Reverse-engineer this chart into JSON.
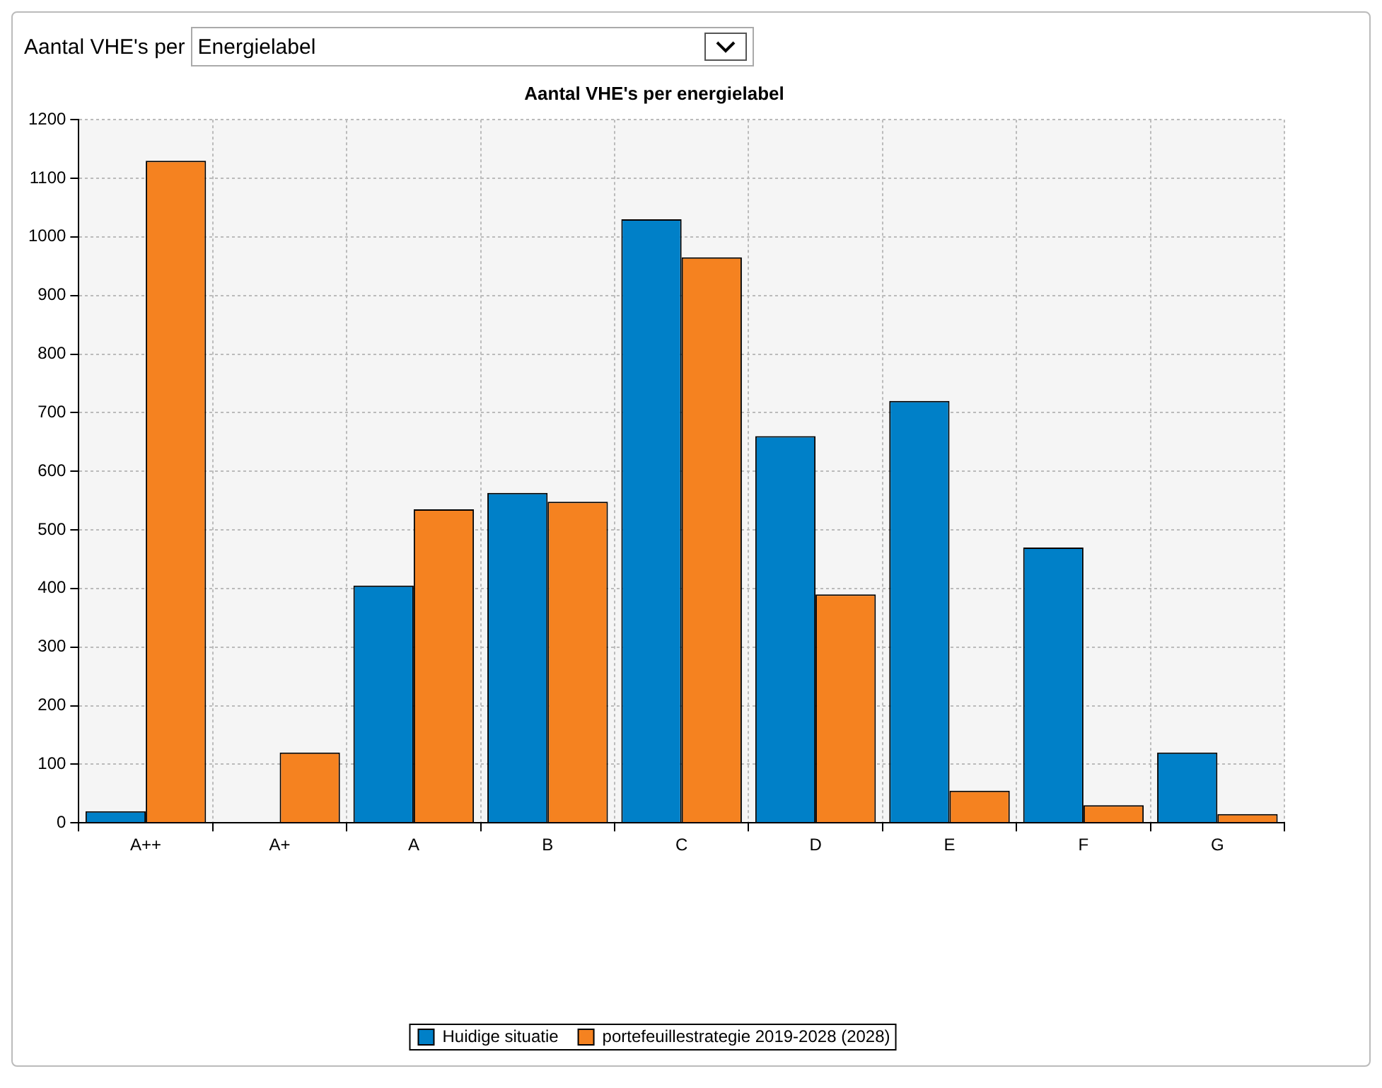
{
  "chart_data": {
    "type": "bar",
    "title": "Aantal VHE's per energielabel",
    "annotations": [
      "Aantal VHE's per",
      "Energielabel"
    ],
    "categories": [
      "A++",
      "A+",
      "A",
      "B",
      "C",
      "D",
      "E",
      "F",
      "G"
    ],
    "series": [
      {
        "name": "Huidige situatie",
        "color": "#0080c8",
        "values": [
          20,
          0,
          405,
          563,
          1030,
          660,
          720,
          470,
          120
        ]
      },
      {
        "name": "portefeuillestrategie 2019-2028 (2028)",
        "color": "#f58220",
        "values": [
          1130,
          120,
          535,
          548,
          965,
          390,
          55,
          30,
          15
        ]
      }
    ],
    "ylim": [
      0,
      1200
    ],
    "yticks": [
      0,
      100,
      200,
      300,
      400,
      500,
      600,
      700,
      800,
      900,
      1000,
      1100,
      1200
    ],
    "grid": true,
    "legend": "bottom"
  }
}
